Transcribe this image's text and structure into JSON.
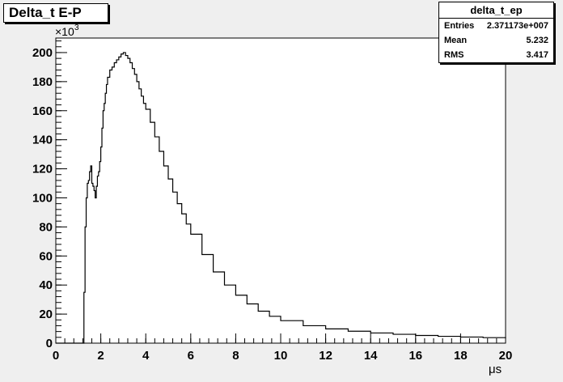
{
  "title": "Delta_t E-P",
  "stats": {
    "name": "delta_t_ep",
    "entries_label": "Entries",
    "entries_value": "2.371173e+007",
    "mean_label": "Mean",
    "mean_value": "5.232",
    "rms_label": "RMS",
    "rms_value": "3.417"
  },
  "axis": {
    "y_exponent_base": "×10",
    "y_exponent_power": "3",
    "x_unit": "μs"
  },
  "chart_data": {
    "type": "line",
    "title": "Delta_t E-P",
    "xlabel": "μs",
    "ylabel": "",
    "xlim": [
      0,
      20
    ],
    "ylim": [
      0,
      210000
    ],
    "x_ticks": [
      "0",
      "2",
      "4",
      "6",
      "8",
      "10",
      "12",
      "14",
      "16",
      "18",
      "20"
    ],
    "y_ticks": [
      "0",
      "20",
      "40",
      "60",
      "80",
      "100",
      "120",
      "140",
      "160",
      "180",
      "200"
    ],
    "y_scale_note": "×10^3",
    "series": [
      {
        "x": [
          0,
          1.2,
          1.25,
          1.3,
          1.35,
          1.4,
          1.45,
          1.5,
          1.55,
          1.6,
          1.65,
          1.7,
          1.75,
          1.8,
          1.85,
          1.9,
          1.95,
          2.0,
          2.05,
          2.1,
          2.15,
          2.2,
          2.25,
          2.3,
          2.4,
          2.5,
          2.6,
          2.7,
          2.8,
          2.9,
          3.0,
          3.1,
          3.2,
          3.3,
          3.4,
          3.5,
          3.6,
          3.7,
          3.8,
          3.9,
          4.0,
          4.2,
          4.4,
          4.6,
          4.8,
          5.0,
          5.2,
          5.4,
          5.6,
          5.8,
          6.0,
          6.5,
          7.0,
          7.5,
          8.0,
          8.5,
          9.0,
          9.5,
          10.0,
          11.0,
          12.0,
          13.0,
          14.0,
          15.0,
          16.0,
          17.0,
          18.0,
          19.0,
          20.0
        ],
        "y": [
          0,
          0,
          35000,
          80000,
          100000,
          110000,
          112000,
          118000,
          122000,
          110000,
          108000,
          105000,
          100000,
          108000,
          115000,
          118000,
          125000,
          135000,
          148000,
          160000,
          165000,
          172000,
          178000,
          183000,
          188000,
          190000,
          193000,
          195000,
          197000,
          199000,
          200000,
          198000,
          196000,
          193000,
          189000,
          185000,
          180000,
          175000,
          170000,
          165000,
          161000,
          152000,
          142000,
          132000,
          122000,
          113000,
          104000,
          96000,
          89000,
          82000,
          75000,
          61000,
          49000,
          40000,
          33000,
          27000,
          22000,
          18500,
          15500,
          12000,
          9800,
          8200,
          7000,
          6100,
          5300,
          4700,
          4200,
          3800,
          3400
        ]
      }
    ]
  }
}
